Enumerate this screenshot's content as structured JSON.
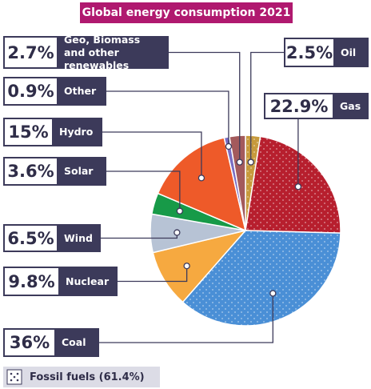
{
  "chart_data": {
    "type": "pie",
    "title": "Global energy consumption 2021",
    "categories": [
      "Oil",
      "Gas",
      "Coal",
      "Nuclear",
      "Wind",
      "Solar",
      "Hydro",
      "Other",
      "Geo, Biomass and other renewables"
    ],
    "values": [
      2.5,
      22.9,
      36,
      9.8,
      6.5,
      3.6,
      15,
      0.9,
      2.7
    ],
    "value_labels": [
      "2.5%",
      "22.9%",
      "36%",
      "9.8%",
      "6.5%",
      "3.6%",
      "15%",
      "0.9%",
      "2.7%"
    ],
    "colors": [
      "#c79a3c",
      "#b71f2e",
      "#4a8fd6",
      "#f6a940",
      "#b7c3d5",
      "#179a48",
      "#ee5a29",
      "#7a6dc2",
      "#a35a5c"
    ],
    "patterned": [
      true,
      true,
      true,
      false,
      false,
      false,
      false,
      false,
      false
    ],
    "legend_label": "Fossil fuels (61.4%)"
  }
}
